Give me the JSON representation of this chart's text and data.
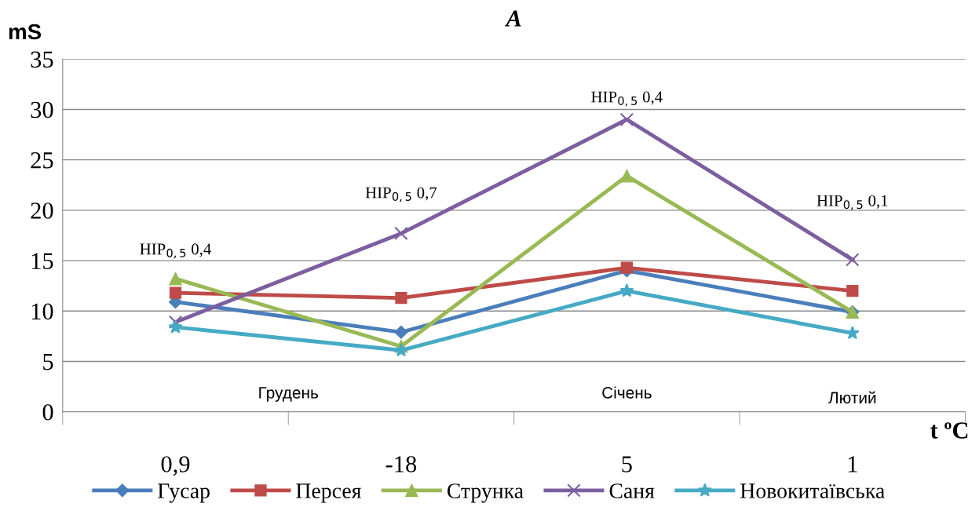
{
  "chart_data": {
    "type": "line",
    "title": "A",
    "ylabel": "mS",
    "xlabel": "t ºC",
    "categories": [
      "0,9",
      "-18",
      "5",
      "1"
    ],
    "series": [
      {
        "name": "Гусар",
        "color": "#4a7ebb",
        "marker": "diamond",
        "values": [
          10.9,
          7.9,
          14.0,
          9.9
        ]
      },
      {
        "name": "Персея",
        "color": "#be4b48",
        "marker": "square",
        "values": [
          11.8,
          11.3,
          14.3,
          12.0
        ]
      },
      {
        "name": "Струнка",
        "color": "#98b954",
        "marker": "triangle",
        "values": [
          13.2,
          6.5,
          23.4,
          9.9
        ]
      },
      {
        "name": "Саня",
        "color": "#7d5fa0",
        "marker": "cross",
        "values": [
          8.9,
          17.7,
          29.0,
          15.1
        ]
      },
      {
        "name": "Новокитаївська",
        "color": "#46aac5",
        "marker": "star",
        "values": [
          8.4,
          6.1,
          12.0,
          7.8
        ]
      }
    ],
    "ylim": [
      0,
      35
    ],
    "yticks": [
      0,
      5,
      10,
      15,
      20,
      25,
      30,
      35
    ],
    "grid": "y",
    "legend": "bottom",
    "line_style": "solid",
    "annotations": [
      "НІР$_{0,5}$ 0,4",
      "НІР$_{0,5}$ 0,7",
      "НІР$_{0,5}$ 0,4",
      "НІР$_{0,5}$ 0,1",
      "Грудень",
      "Січень",
      "Лютий"
    ]
  }
}
